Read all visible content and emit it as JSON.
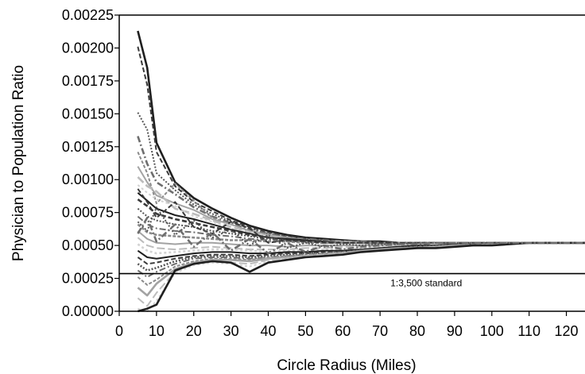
{
  "chart_data": {
    "type": "line",
    "title": "",
    "xlabel": "Circle Radius (Miles)",
    "ylabel": "Physician to Population Ratio",
    "xlim": [
      0,
      125
    ],
    "ylim": [
      0,
      0.00225
    ],
    "x_ticks": [
      0,
      10,
      20,
      30,
      40,
      50,
      60,
      70,
      80,
      90,
      100,
      110,
      120
    ],
    "x_tick_labels": [
      "0",
      "10",
      "20",
      "30",
      "40",
      "50",
      "60",
      "70",
      "80",
      "90",
      "100",
      "110",
      "120"
    ],
    "y_ticks": [
      0,
      0.00025,
      0.0005,
      0.00075,
      0.001,
      0.00125,
      0.0015,
      0.00175,
      0.002,
      0.00225
    ],
    "y_tick_labels": [
      "0.00000",
      "0.00025",
      "0.00050",
      "0.00075",
      "0.00100",
      "0.00125",
      "0.00150",
      "0.00175",
      "0.00200",
      "0.00225"
    ],
    "grid": false,
    "legend": "none",
    "x": [
      5,
      7.5,
      10,
      15,
      20,
      25,
      30,
      35,
      40,
      45,
      50,
      55,
      60,
      65,
      70,
      75,
      80,
      85,
      90,
      95,
      100,
      105,
      110,
      115,
      120,
      125
    ],
    "reference_line": {
      "y": 0.000286,
      "label": "1:3,500 standard"
    },
    "series_colors": [
      "#1f1f1f",
      "#3a3a3a",
      "#555555",
      "#6e6e6e",
      "#8a8a8a",
      "#a3a3a3",
      "#bcbcbc",
      "#d2d2d2"
    ],
    "series": [
      {
        "values": [
          0.00213,
          0.00185,
          0.00128,
          0.00098,
          0.00086,
          0.00078,
          0.00071,
          0.00065,
          0.00061,
          0.00058,
          0.00056,
          0.00055,
          0.00054,
          0.00053,
          0.00053,
          0.00052,
          0.00052,
          0.00052,
          0.00052,
          0.00052,
          0.00052,
          0.00052,
          0.00052,
          0.00052,
          0.00052,
          0.00052
        ]
      },
      {
        "values": [
          0.00201,
          0.00172,
          0.00121,
          0.00095,
          0.00083,
          0.00076,
          0.00069,
          0.00064,
          0.0006,
          0.00057,
          0.00055,
          0.00054,
          0.00053,
          0.00053,
          0.00052,
          0.00052,
          0.00052,
          0.00052,
          0.00052,
          0.00052,
          0.00052,
          0.00052,
          0.00052,
          0.00052,
          0.00052,
          0.00052
        ]
      },
      {
        "values": [
          0.00151,
          0.00138,
          0.00105,
          0.00092,
          0.00081,
          0.00074,
          0.00068,
          0.00063,
          0.00059,
          0.00057,
          0.00055,
          0.00054,
          0.00053,
          0.00053,
          0.00052,
          0.00052,
          0.00052,
          0.00052,
          0.00052,
          0.00052,
          0.00052,
          0.00052,
          0.00052,
          0.00052,
          0.00052,
          0.00052
        ]
      },
      {
        "values": [
          0.00133,
          0.00112,
          0.00098,
          0.00089,
          0.00079,
          0.00072,
          0.00067,
          0.00062,
          0.00059,
          0.00056,
          0.00055,
          0.00054,
          0.00053,
          0.00053,
          0.00052,
          0.00052,
          0.00052,
          0.00052,
          0.00052,
          0.00052,
          0.00052,
          0.00052,
          0.00052,
          0.00052,
          0.00052,
          0.00052
        ]
      },
      {
        "values": [
          0.00121,
          0.00105,
          0.00082,
          0.00097,
          0.00084,
          0.00071,
          0.00066,
          0.00061,
          0.00058,
          0.00056,
          0.00054,
          0.00053,
          0.00053,
          0.00052,
          0.00052,
          0.00052,
          0.00052,
          0.00052,
          0.00052,
          0.00052,
          0.00052,
          0.00052,
          0.00052,
          0.00052,
          0.00052,
          0.00052
        ]
      },
      {
        "values": [
          0.0011,
          0.00098,
          0.00088,
          0.00082,
          0.00077,
          0.0007,
          0.00066,
          0.00061,
          0.00058,
          0.00056,
          0.00054,
          0.00053,
          0.00053,
          0.00052,
          0.00052,
          0.00052,
          0.00052,
          0.00052,
          0.00052,
          0.00052,
          0.00052,
          0.00052,
          0.00052,
          0.00052,
          0.00052,
          0.00052
        ]
      },
      {
        "values": [
          0.00102,
          0.00095,
          0.00091,
          0.00078,
          0.00074,
          0.00069,
          0.00064,
          0.0006,
          0.00057,
          0.00055,
          0.00054,
          0.00053,
          0.00053,
          0.00052,
          0.00052,
          0.00052,
          0.00052,
          0.00052,
          0.00052,
          0.00052,
          0.00052,
          0.00052,
          0.00052,
          0.00052,
          0.00052,
          0.00052
        ]
      },
      {
        "values": [
          0.00096,
          0.0009,
          0.00085,
          0.0008,
          0.00072,
          0.00068,
          0.00063,
          0.0006,
          0.00057,
          0.00055,
          0.00054,
          0.00053,
          0.00052,
          0.00052,
          0.00052,
          0.00052,
          0.00052,
          0.00052,
          0.00052,
          0.00052,
          0.00052,
          0.00052,
          0.00052,
          0.00052,
          0.00052,
          0.00052
        ]
      },
      {
        "values": [
          0.0009,
          0.00084,
          0.00078,
          0.00073,
          0.0007,
          0.00066,
          0.00062,
          0.00059,
          0.00056,
          0.00055,
          0.00054,
          0.00053,
          0.00052,
          0.00052,
          0.00052,
          0.00052,
          0.00052,
          0.00052,
          0.00052,
          0.00052,
          0.00052,
          0.00052,
          0.00052,
          0.00052,
          0.00052,
          0.00052
        ]
      },
      {
        "values": [
          0.00085,
          0.0008,
          0.00074,
          0.0007,
          0.00067,
          0.00064,
          0.00061,
          0.00058,
          0.00056,
          0.00054,
          0.00053,
          0.00053,
          0.00052,
          0.00052,
          0.00052,
          0.00052,
          0.00052,
          0.00052,
          0.00052,
          0.00052,
          0.00052,
          0.00052,
          0.00052,
          0.00052,
          0.00052,
          0.00052
        ]
      },
      {
        "values": [
          0.00078,
          0.00072,
          0.00069,
          0.00066,
          0.00064,
          0.00061,
          0.00059,
          0.00057,
          0.00055,
          0.00054,
          0.00053,
          0.00052,
          0.00052,
          0.00052,
          0.00052,
          0.00052,
          0.00052,
          0.00052,
          0.00052,
          0.00052,
          0.00052,
          0.00052,
          0.00052,
          0.00052,
          0.00052,
          0.00052
        ]
      },
      {
        "values": [
          0.00072,
          0.00066,
          0.00063,
          0.00061,
          0.0006,
          0.00058,
          0.00057,
          0.00055,
          0.00054,
          0.00053,
          0.00053,
          0.00052,
          0.00052,
          0.00052,
          0.00052,
          0.00052,
          0.00052,
          0.00052,
          0.00052,
          0.00052,
          0.00052,
          0.00052,
          0.00052,
          0.00052,
          0.00052,
          0.00052
        ]
      },
      {
        "values": [
          0.00066,
          0.0006,
          0.00058,
          0.00057,
          0.00056,
          0.00055,
          0.00054,
          0.00054,
          0.00053,
          0.00053,
          0.00052,
          0.00052,
          0.00052,
          0.00052,
          0.00052,
          0.00052,
          0.00052,
          0.00052,
          0.00052,
          0.00052,
          0.00052,
          0.00052,
          0.00052,
          0.00052,
          0.00052,
          0.00052
        ]
      },
      {
        "values": [
          0.00061,
          0.00055,
          0.00052,
          0.00051,
          0.00052,
          0.00052,
          0.00051,
          0.0005,
          0.0005,
          0.00049,
          0.0005,
          0.0005,
          0.0005,
          0.0005,
          0.00051,
          0.00051,
          0.00051,
          0.00052,
          0.00052,
          0.00052,
          0.00052,
          0.00052,
          0.00052,
          0.00052,
          0.00052,
          0.00052
        ]
      },
      {
        "values": [
          0.00056,
          0.0005,
          0.00048,
          0.00047,
          0.00048,
          0.00049,
          0.00048,
          0.00047,
          0.00047,
          0.00047,
          0.00048,
          0.00048,
          0.00049,
          0.00049,
          0.0005,
          0.0005,
          0.00051,
          0.00051,
          0.00052,
          0.00052,
          0.00052,
          0.00052,
          0.00052,
          0.00052,
          0.00052,
          0.00052
        ]
      },
      {
        "values": [
          0.00051,
          0.00046,
          0.00044,
          0.00045,
          0.00046,
          0.00047,
          0.00047,
          0.00046,
          0.00045,
          0.00046,
          0.00046,
          0.00047,
          0.00047,
          0.00048,
          0.00049,
          0.0005,
          0.0005,
          0.00051,
          0.00051,
          0.00052,
          0.00052,
          0.00052,
          0.00052,
          0.00052,
          0.00052,
          0.00052
        ]
      },
      {
        "values": [
          0.00046,
          0.00041,
          0.0004,
          0.00042,
          0.00044,
          0.00045,
          0.00045,
          0.00044,
          0.00044,
          0.00045,
          0.00045,
          0.00046,
          0.00046,
          0.00047,
          0.00048,
          0.00049,
          0.0005,
          0.0005,
          0.00051,
          0.00051,
          0.00052,
          0.00052,
          0.00052,
          0.00052,
          0.00052,
          0.00052
        ]
      },
      {
        "values": [
          0.00041,
          0.00036,
          0.00037,
          0.0004,
          0.00042,
          0.00043,
          0.00043,
          0.00042,
          0.00043,
          0.00044,
          0.00044,
          0.00045,
          0.00045,
          0.00046,
          0.00047,
          0.00048,
          0.00049,
          0.0005,
          0.00051,
          0.00051,
          0.00052,
          0.00052,
          0.00052,
          0.00052,
          0.00052,
          0.00052
        ]
      },
      {
        "values": [
          0.00036,
          0.00031,
          0.00033,
          0.00038,
          0.00041,
          0.00042,
          0.00042,
          0.00041,
          0.00042,
          0.00043,
          0.00044,
          0.00044,
          0.00045,
          0.00046,
          0.00047,
          0.00048,
          0.00049,
          0.0005,
          0.0005,
          0.00051,
          0.00052,
          0.00052,
          0.00052,
          0.00052,
          0.00052,
          0.00052
        ]
      },
      {
        "values": [
          0.00031,
          0.00026,
          0.0003,
          0.00036,
          0.0004,
          0.00041,
          0.00041,
          0.0004,
          0.00041,
          0.00042,
          0.00043,
          0.00044,
          0.00045,
          0.00046,
          0.00047,
          0.00048,
          0.00049,
          0.00049,
          0.0005,
          0.00051,
          0.00051,
          0.00052,
          0.00052,
          0.00052,
          0.00052,
          0.00052
        ]
      },
      {
        "values": [
          0.00026,
          0.0002,
          0.00024,
          0.00034,
          0.00038,
          0.0004,
          0.0004,
          0.00039,
          0.00041,
          0.00042,
          0.00043,
          0.00044,
          0.00045,
          0.00046,
          0.00047,
          0.00048,
          0.00049,
          0.00049,
          0.0005,
          0.00051,
          0.00051,
          0.00052,
          0.00052,
          0.00052,
          0.00052,
          0.00052
        ]
      },
      {
        "values": [
          0.00018,
          0.00012,
          0.00021,
          0.00032,
          0.00037,
          0.00039,
          0.00039,
          0.00038,
          0.0004,
          0.00041,
          0.00042,
          0.00043,
          0.00044,
          0.00046,
          0.00047,
          0.00048,
          0.00048,
          0.00049,
          0.0005,
          0.0005,
          0.00051,
          0.00052,
          0.00052,
          0.00052,
          0.00052,
          0.00052
        ]
      },
      {
        "values": [
          0.0001,
          4e-05,
          0.00014,
          0.0003,
          0.00036,
          0.00038,
          0.00037,
          0.00036,
          0.00039,
          0.0004,
          0.00042,
          0.00043,
          0.00044,
          0.00045,
          0.00046,
          0.00047,
          0.00048,
          0.00049,
          0.00049,
          0.0005,
          0.00051,
          0.00051,
          0.00052,
          0.00052,
          0.00052,
          0.00052
        ]
      },
      {
        "values": [
          2e-05,
          0.0,
          8e-05,
          0.00029,
          0.00035,
          0.00037,
          0.00036,
          0.00034,
          0.00038,
          0.0004,
          0.00041,
          0.00042,
          0.00043,
          0.00045,
          0.00046,
          0.00047,
          0.00048,
          0.00048,
          0.00049,
          0.0005,
          0.00051,
          0.00051,
          0.00052,
          0.00052,
          0.00052,
          0.00052
        ]
      },
      {
        "values": [
          0.0,
          2e-05,
          5e-05,
          0.00031,
          0.00036,
          0.00038,
          0.00037,
          0.0003,
          0.00037,
          0.00039,
          0.00041,
          0.00042,
          0.00043,
          0.00045,
          0.00046,
          0.00047,
          0.00048,
          0.00048,
          0.00049,
          0.0005,
          0.0005,
          0.00051,
          0.00052,
          0.00052,
          0.00052,
          0.00052
        ]
      },
      {
        "values": [
          0.00093,
          0.00083,
          0.00071,
          0.00083,
          0.00064,
          0.00059,
          0.00068,
          0.00063,
          0.00052,
          0.00054,
          0.00053,
          0.00052,
          0.00052,
          0.00052,
          0.00052,
          0.00052,
          0.00052,
          0.00052,
          0.00052,
          0.00052,
          0.00052,
          0.00052,
          0.00052,
          0.00052,
          0.00052,
          0.00052
        ]
      },
      {
        "values": [
          0.00068,
          0.00061,
          0.00079,
          0.00058,
          0.00069,
          0.00056,
          0.00062,
          0.0005,
          0.00058,
          0.00048,
          0.00052,
          0.00049,
          0.00051,
          0.0005,
          0.00051,
          0.00051,
          0.00052,
          0.00052,
          0.00052,
          0.00052,
          0.00052,
          0.00052,
          0.00052,
          0.00052,
          0.00052,
          0.00052
        ]
      },
      {
        "values": [
          0.00059,
          0.00071,
          0.00053,
          0.00066,
          0.00049,
          0.0006,
          0.00046,
          0.00055,
          0.00044,
          0.00052,
          0.00045,
          0.0005,
          0.00047,
          0.00049,
          0.0005,
          0.00051,
          0.00051,
          0.00052,
          0.00052,
          0.00052,
          0.00052,
          0.00052,
          0.00052,
          0.00052,
          0.00052,
          0.00052
        ]
      }
    ]
  }
}
